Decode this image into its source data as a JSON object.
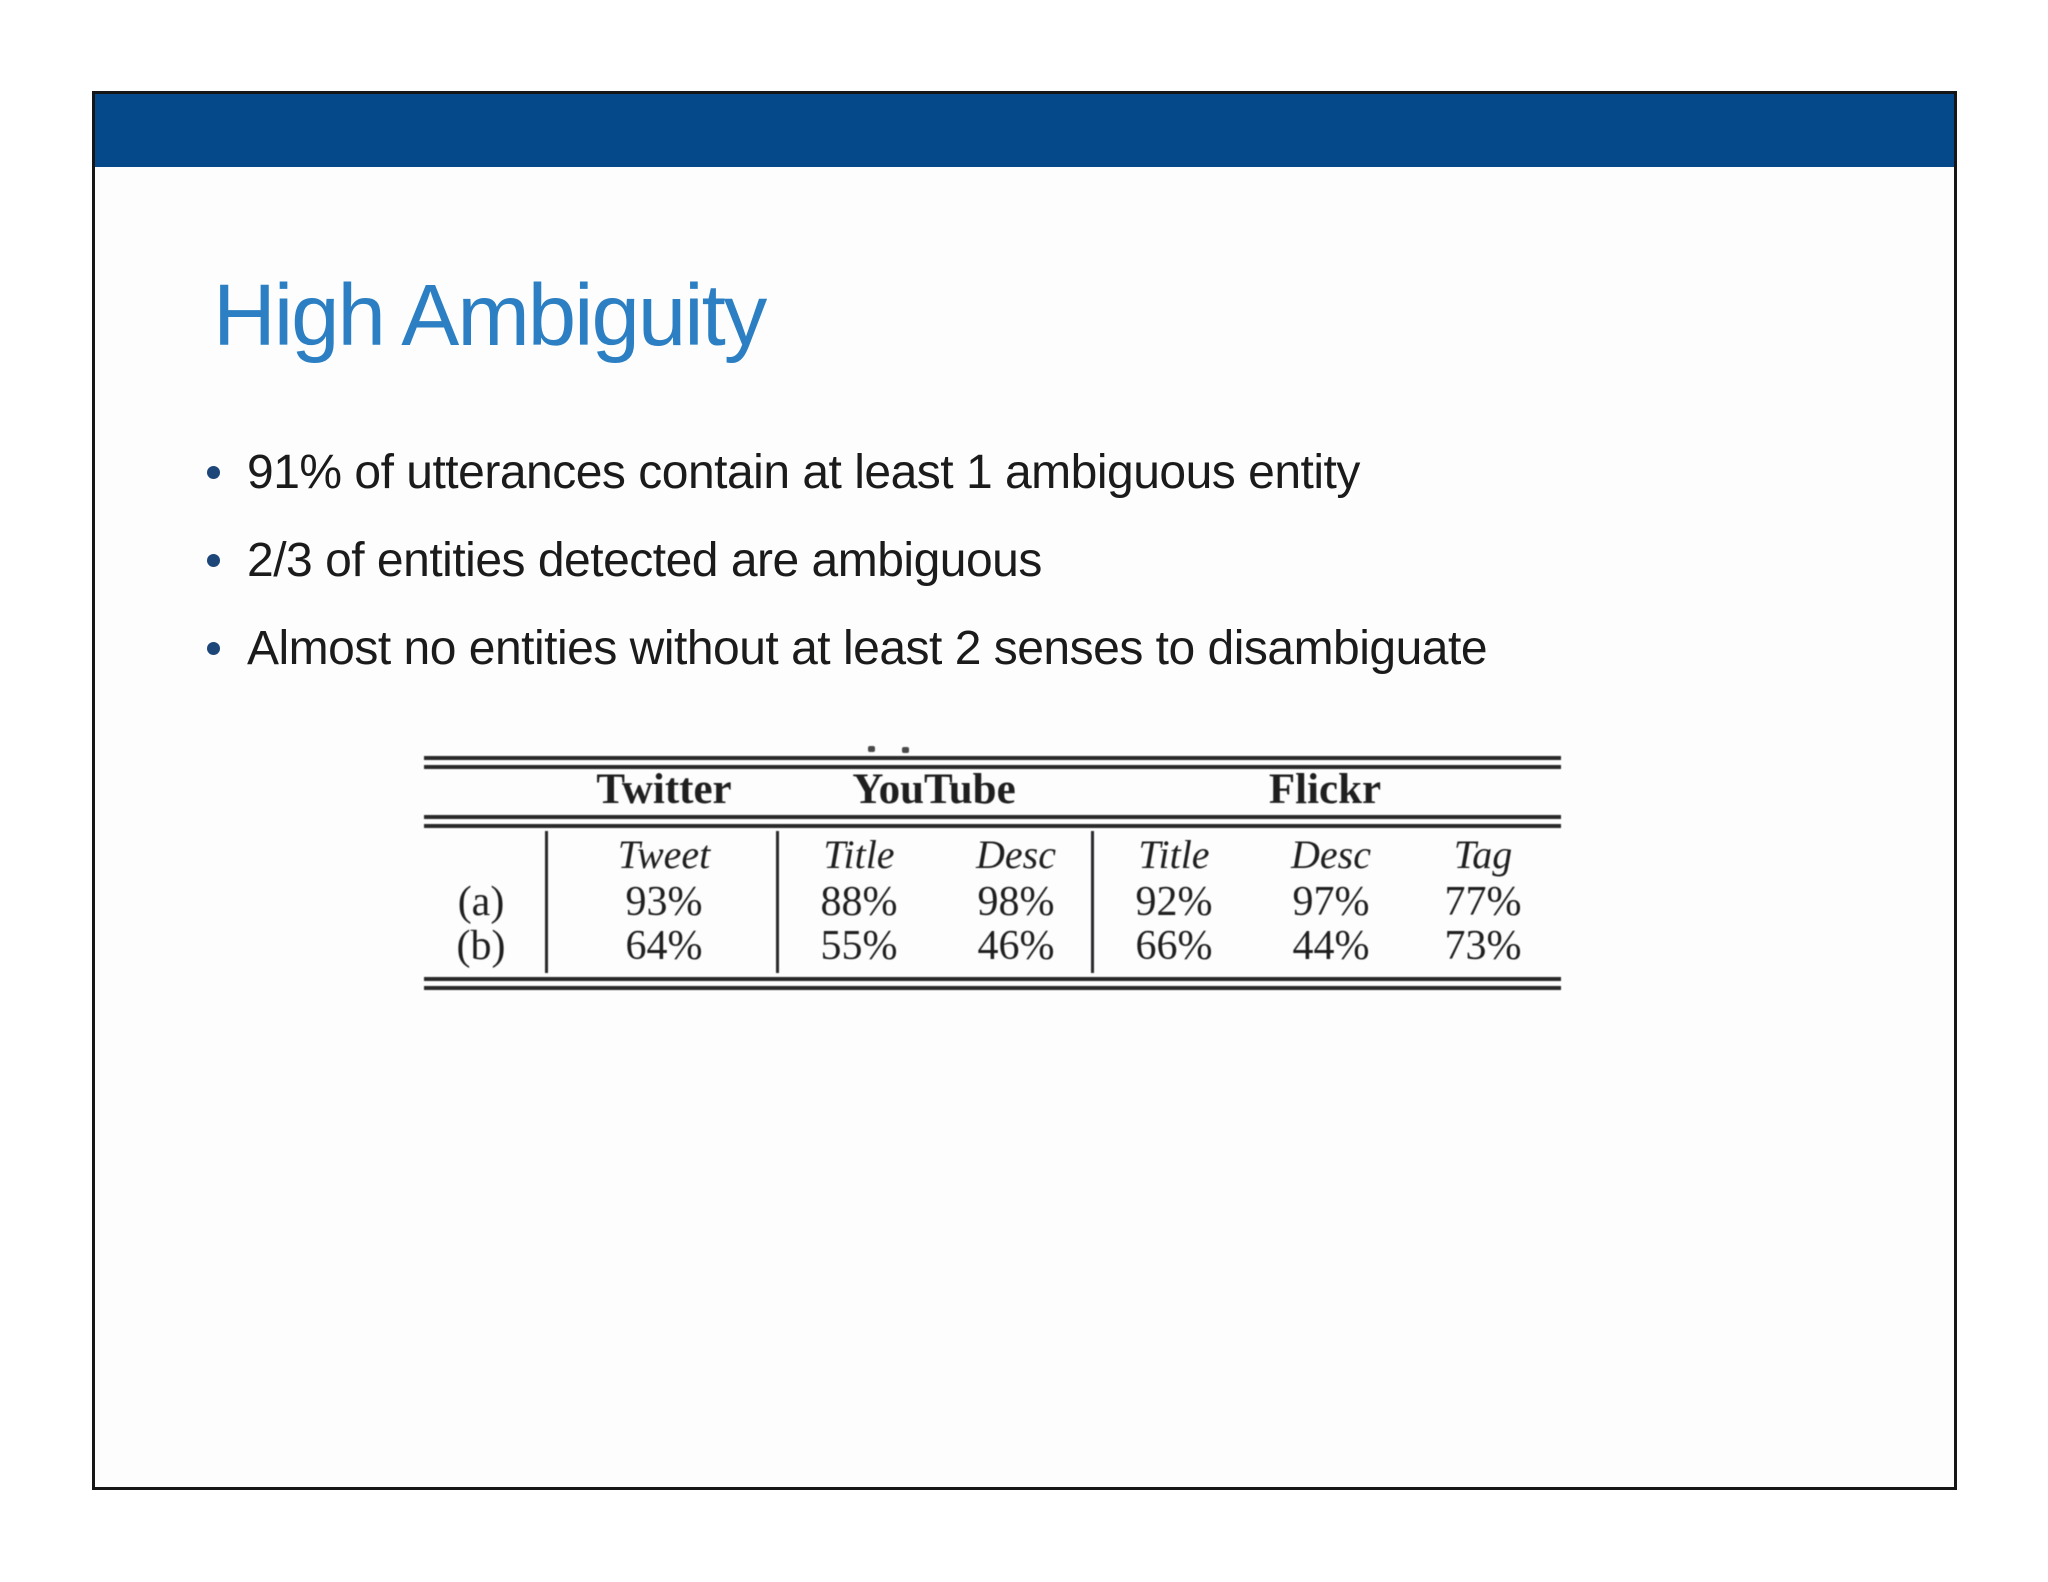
{
  "slide": {
    "title": "High Ambiguity",
    "bullets": [
      "91% of utterances contain at least 1 ambiguous entity",
      "2/3 of entities detected are ambiguous",
      "Almost no entities without at least 2 senses to disambiguate"
    ],
    "colors": {
      "header_bar": "#05498a",
      "title_text": "#2b7fc2",
      "bullet_dot": "#1d4679"
    }
  },
  "table": {
    "group_headers": [
      "Twitter",
      "YouTube",
      "Flickr"
    ],
    "column_headers": [
      "Tweet",
      "Title",
      "Desc",
      "Title",
      "Desc",
      "Tag"
    ],
    "rows": [
      {
        "label": "(a)",
        "values": [
          "93%",
          "88%",
          "98%",
          "92%",
          "97%",
          "77%"
        ]
      },
      {
        "label": "(b)",
        "values": [
          "64%",
          "55%",
          "46%",
          "66%",
          "44%",
          "73%"
        ]
      }
    ]
  }
}
